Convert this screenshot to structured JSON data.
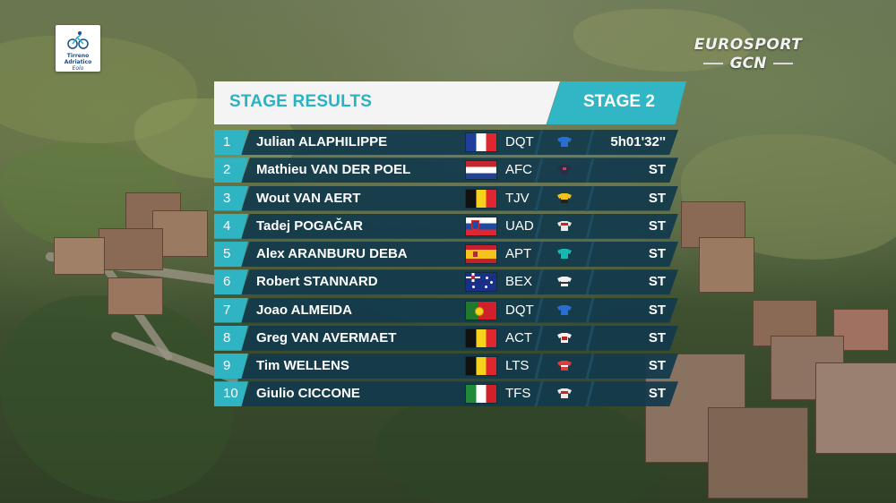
{
  "race_logo": {
    "name": "Tirreno Adriatico",
    "sub": "Eolo"
  },
  "broadcaster": {
    "line1": "EUROSPORT",
    "line2": "GCN"
  },
  "panel": {
    "title": "STAGE RESULTS",
    "stage": "STAGE 2"
  },
  "colors": {
    "accent": "#31b6c6",
    "row_bg": "#123a4c",
    "header_bg": "#f4f4f4"
  },
  "results": [
    {
      "pos": "1",
      "name": "Julian ALAPHILIPPE",
      "flag": "fr",
      "team": "DQT",
      "jersey_color": "#2a6ed1",
      "time": "5h01'32''"
    },
    {
      "pos": "2",
      "name": "Mathieu VAN DER POEL",
      "flag": "nl",
      "team": "AFC",
      "jersey_color": "#2c2c4a",
      "time": "ST"
    },
    {
      "pos": "3",
      "name": "Wout VAN AERT",
      "flag": "be",
      "team": "TJV",
      "jersey_color": "#f2c21c",
      "time": "ST"
    },
    {
      "pos": "4",
      "name": "Tadej POGAČAR",
      "flag": "si",
      "team": "UAD",
      "jersey_color": "#e8e8e8",
      "time": "ST"
    },
    {
      "pos": "5",
      "name": "Alex ARANBURU DEBA",
      "flag": "es-f",
      "team": "APT",
      "jersey_color": "#19b7b0",
      "time": "ST"
    },
    {
      "pos": "6",
      "name": "Robert STANNARD",
      "flag": "au",
      "team": "BEX",
      "jersey_color": "#f0f0f0",
      "time": "ST"
    },
    {
      "pos": "7",
      "name": "Joao ALMEIDA",
      "flag": "pt",
      "team": "DQT",
      "jersey_color": "#2a6ed1",
      "time": "ST"
    },
    {
      "pos": "8",
      "name": "Greg VAN AVERMAET",
      "flag": "be",
      "team": "ACT",
      "jersey_color": "#f2f2f2",
      "time": "ST"
    },
    {
      "pos": "9",
      "name": "Tim WELLENS",
      "flag": "be",
      "team": "LTS",
      "jersey_color": "#e23b3b",
      "time": "ST"
    },
    {
      "pos": "10",
      "name": "Giulio CICCONE",
      "flag": "it",
      "team": "TFS",
      "jersey_color": "#e8e8e8",
      "time": "ST"
    }
  ]
}
